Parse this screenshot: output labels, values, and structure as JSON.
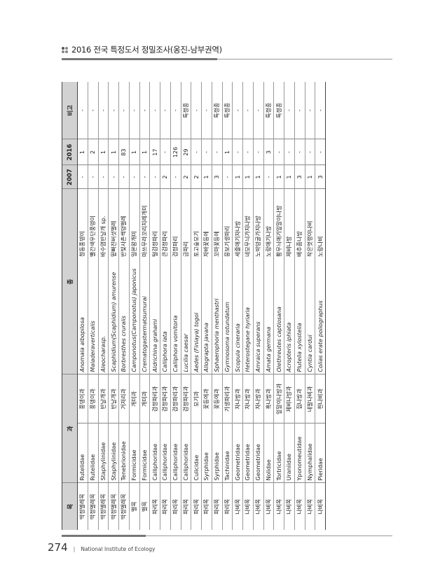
{
  "header": {
    "title": "2016 전국 특정도서 정밀조사(옹진-남부권역)"
  },
  "footer": {
    "page_number": "274",
    "separator": "|",
    "organization": "National Institute of Ecology"
  },
  "table": {
    "columns": {
      "order": "목",
      "family": "과",
      "species": "종",
      "y2007": "2007",
      "y2016": "2016",
      "note": "비고"
    },
    "rows": [
      {
        "order": "딱정벌레목",
        "family_latin": "Rutelidae",
        "family_kr": "풍뎅이과",
        "sci": "Anomala albopilosa",
        "kr": "청동풍뎅이",
        "y2007": "-",
        "y2016": "1",
        "note": "-"
      },
      {
        "order": "딱정벌레목",
        "family_latin": "Rutelidae",
        "family_kr": "풍뎅이과",
        "sci": "Maladeraverticalis",
        "kr": "빨간색우단풍뎅이",
        "y2007": "-",
        "y2016": "2",
        "note": "-"
      },
      {
        "order": "딱정벌레목",
        "family_latin": "Staphylinidae",
        "family_kr": "반날개과",
        "sci": "Aleocharasp.",
        "kr": "바수염반날개 sp.",
        "y2007": "-",
        "y2016": "1",
        "note": "-"
      },
      {
        "order": "딱정벌레목",
        "family_latin": "Staphylinidae",
        "family_kr": "반날개과",
        "sci": "Scaphidium(Scaphidium) amurense",
        "kr": "밑빠진버섯벌레",
        "y2007": "-",
        "y2016": "1",
        "note": "-"
      },
      {
        "order": "딱정벌레목",
        "family_latin": "Tenebrionidae",
        "family_kr": "거저리과",
        "sci": "Borbresthes cruralis",
        "kr": "반빛사촌썩덩벌레",
        "y2007": "-",
        "y2016": "83",
        "note": "-"
      },
      {
        "order": "벌목",
        "family_latin": "Formicidae",
        "family_kr": "개미과",
        "sci": "Camponotus(Camponotus) japonicus",
        "kr": "일본왕개미",
        "y2007": "-",
        "y2016": "1",
        "note": "-"
      },
      {
        "order": "벌목",
        "family_latin": "Formicidae",
        "family_kr": "개미과",
        "sci": "Crematogastermatsumurai",
        "kr": "마쓰무라꼬리치레개미",
        "y2007": "-",
        "y2016": "1",
        "note": "-"
      },
      {
        "order": "파리목",
        "family_latin": "Calliphoridae",
        "family_kr": "검정파리과",
        "sci": "Aldrichina grahami",
        "kr": "털검정파리",
        "y2007": "-",
        "y2016": "17",
        "note": "-"
      },
      {
        "order": "파리목",
        "family_latin": "Calliphoridae",
        "family_kr": "검정파리과",
        "sci": "Calliphora lata",
        "kr": "큰검정파리",
        "y2007": "2",
        "y2016": "-",
        "note": "-"
      },
      {
        "order": "파리목",
        "family_latin": "Calliphoridae",
        "family_kr": "검정파리과",
        "sci": "Calliphora vomitoria",
        "kr": "검정파리",
        "y2007": "-",
        "y2016": "126",
        "note": "-"
      },
      {
        "order": "파리목",
        "family_latin": "Calliphoridae",
        "family_kr": "검정파리과",
        "sci": "Lucilia caesar",
        "kr": "금파리",
        "y2007": "2",
        "y2016": "29",
        "note": "특정종"
      },
      {
        "order": "파리목",
        "family_latin": "Culicidae",
        "family_kr": "모기과",
        "sci": "Aedes (Finlaya) togoi",
        "kr": "토고숲모기",
        "y2007": "2",
        "y2016": "-",
        "note": "-"
      },
      {
        "order": "파리목",
        "family_latin": "Syrphidae",
        "family_kr": "꽃등에과",
        "sci": "Allograpta javana",
        "kr": "자바꽃등에",
        "y2007": "1",
        "y2016": "-",
        "note": "-"
      },
      {
        "order": "파리목",
        "family_latin": "Syrphidae",
        "family_kr": "꽃등에과",
        "sci": "Sphaerophoria  menthastri",
        "kr": "꼬마꽃등에",
        "y2007": "3",
        "y2016": "-",
        "note": "특정종"
      },
      {
        "order": "파리목",
        "family_latin": "Tachinidae",
        "family_kr": "기생파리과",
        "sci": "Gymnosoma rotundatum",
        "kr": "뭉보기생파리",
        "y2007": "-",
        "y2016": "1",
        "note": "특정종"
      },
      {
        "order": "나비목",
        "family_latin": "Geometridae",
        "family_kr": "자나방과",
        "sci": "Scopula cineraria",
        "kr": "세줄애기자나방",
        "y2007": "1",
        "y2016": "-",
        "note": "-"
      },
      {
        "order": "나비목",
        "family_latin": "Geometridae",
        "family_kr": "자나방과",
        "sci": "Heterostegane  hyriaria",
        "kr": "네모무늬가지나방",
        "y2007": "1",
        "y2016": "-",
        "note": "-"
      },
      {
        "order": "나비목",
        "family_latin": "Geometridae",
        "family_kr": "자나방과",
        "sci": "Amraica superans",
        "kr": "노박덩굴가지나방",
        "y2007": "1",
        "y2016": "-",
        "note": "-"
      },
      {
        "order": "나비목",
        "family_latin": "Nolidae",
        "family_kr": "혹나방과",
        "sci": "Amata germana",
        "kr": "노랑애기나방",
        "y2007": "-",
        "y2016": "3",
        "note": "특정종"
      },
      {
        "order": "나비목",
        "family_latin": "Tortricidae",
        "family_kr": "잎말이나방과",
        "sci": "Olethreutes  captiosana",
        "kr": "황무늬애기잎말이나방",
        "y2007": "1",
        "y2016": "-",
        "note": "특정종"
      },
      {
        "order": "나비목",
        "family_latin": "Uraniidae",
        "family_kr": "제비나방과",
        "sci": "Acropteris iphiata",
        "kr": "제비나방",
        "y2007": "1",
        "y2016": "-",
        "note": "-"
      },
      {
        "order": "나비목",
        "family_latin": "Yponomeutidae",
        "family_kr": "집나방과",
        "sci": "Plutella xylostella",
        "kr": "배추좀나방",
        "y2007": "3",
        "y2016": "-",
        "note": "-"
      },
      {
        "order": "나비목",
        "family_latin": "Nymphalidae",
        "family_kr": "네발나비과",
        "sci": "Cyntia cardui",
        "kr": "작은멋쟁이나비",
        "y2007": "1",
        "y2016": "-",
        "note": "-"
      },
      {
        "order": "나비목",
        "family_latin": "Pieridae",
        "family_kr": "흰나비과",
        "sci": "Colias erate  poliographus",
        "kr": "노랑나비",
        "y2007": "3",
        "y2016": "-",
        "note": "-"
      }
    ]
  }
}
